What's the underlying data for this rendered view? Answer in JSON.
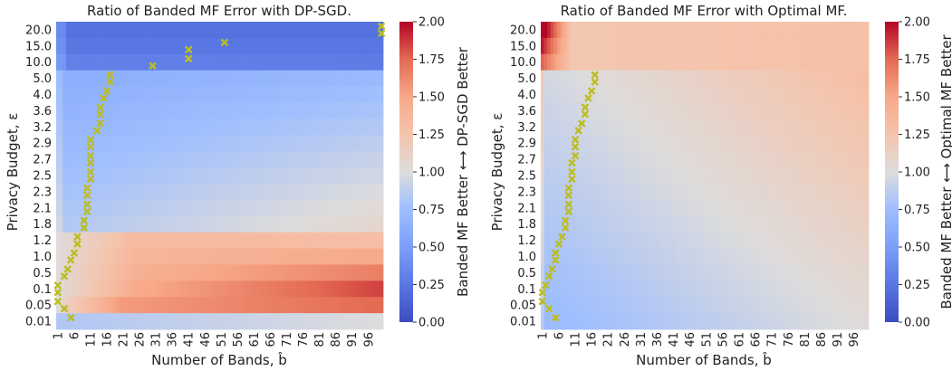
{
  "chart_data": [
    {
      "type": "heatmap",
      "title": "Ratio of Banded MF Error with DP-SGD.",
      "xlabel": "Number of Bands, b̂",
      "ylabel": "Privacy Budget, ε",
      "colorbar_label": "Banded MF Better ⟷ DP-SGD Better",
      "x_tick_labels": [
        "1",
        "6",
        "11",
        "16",
        "21",
        "26",
        "31",
        "36",
        "41",
        "46",
        "51",
        "56",
        "61",
        "66",
        "71",
        "76",
        "81",
        "86",
        "91",
        "96"
      ],
      "y_tick_labels": [
        "20.0",
        "15.0",
        "10.0",
        "5.0",
        "4.0",
        "3.6",
        "3.2",
        "2.9",
        "2.7",
        "2.5",
        "2.3",
        "2.1",
        "1.8",
        "1.2",
        "1.0",
        "0.5",
        "0.1",
        "0.05",
        "0.01"
      ],
      "colorbar_ticks": [
        "0.00",
        "0.25",
        "0.50",
        "0.75",
        "1.00",
        "1.25",
        "1.50",
        "1.75",
        "2.00"
      ],
      "vmin": 0.0,
      "vmax": 2.0,
      "colormap": "coolwarm",
      "marker_color": "#bcbd22",
      "optimal_markers": [
        {
          "eps": "20.0",
          "bands": 100
        },
        {
          "eps": "20.0",
          "bands": 100
        },
        {
          "eps": "15.0",
          "bands": 52
        },
        {
          "eps": "15.0",
          "bands": 41
        },
        {
          "eps": "10.0",
          "bands": 41
        },
        {
          "eps": "10.0",
          "bands": 30
        },
        {
          "eps": "5.0",
          "bands": 17
        },
        {
          "eps": "5.0",
          "bands": 17
        },
        {
          "eps": "4.0",
          "bands": 16
        },
        {
          "eps": "4.0",
          "bands": 15
        },
        {
          "eps": "3.6",
          "bands": 14
        },
        {
          "eps": "3.6",
          "bands": 14
        },
        {
          "eps": "3.2",
          "bands": 14
        },
        {
          "eps": "3.2",
          "bands": 13
        },
        {
          "eps": "2.9",
          "bands": 11
        },
        {
          "eps": "2.9",
          "bands": 11
        },
        {
          "eps": "2.7",
          "bands": 11
        },
        {
          "eps": "2.7",
          "bands": 11
        },
        {
          "eps": "2.5",
          "bands": 11
        },
        {
          "eps": "2.5",
          "bands": 11
        },
        {
          "eps": "2.3",
          "bands": 10
        },
        {
          "eps": "2.3",
          "bands": 10
        },
        {
          "eps": "2.1",
          "bands": 10
        },
        {
          "eps": "2.1",
          "bands": 10
        },
        {
          "eps": "1.8",
          "bands": 9
        },
        {
          "eps": "1.8",
          "bands": 9
        },
        {
          "eps": "1.2",
          "bands": 7
        },
        {
          "eps": "1.2",
          "bands": 7
        },
        {
          "eps": "1.0",
          "bands": 6
        },
        {
          "eps": "1.0",
          "bands": 5
        },
        {
          "eps": "0.5",
          "bands": 4
        },
        {
          "eps": "0.5",
          "bands": 3
        },
        {
          "eps": "0.1",
          "bands": 1
        },
        {
          "eps": "0.1",
          "bands": 1
        },
        {
          "eps": "0.05",
          "bands": 1
        },
        {
          "eps": "0.05",
          "bands": 3
        },
        {
          "eps": "0.01",
          "bands": 5
        }
      ],
      "pattern": "dpsgd"
    },
    {
      "type": "heatmap",
      "title": "Ratio of Banded MF Error with Optimal MF.",
      "xlabel": "Number of Bands, b̂",
      "ylabel": "Privacy Budget, ε",
      "colorbar_label": "Banded MF Better ⟷ Optimal MF Better",
      "x_tick_labels": [
        "1",
        "6",
        "11",
        "16",
        "21",
        "26",
        "31",
        "36",
        "41",
        "46",
        "51",
        "56",
        "61",
        "66",
        "71",
        "76",
        "81",
        "86",
        "91",
        "96"
      ],
      "y_tick_labels": [
        "20.0",
        "15.0",
        "10.0",
        "5.0",
        "4.0",
        "3.6",
        "3.2",
        "2.9",
        "2.7",
        "2.5",
        "2.3",
        "2.1",
        "1.8",
        "1.2",
        "1.0",
        "0.5",
        "0.1",
        "0.05",
        "0.01"
      ],
      "colorbar_ticks": [
        "0.00",
        "0.25",
        "0.50",
        "0.75",
        "1.00",
        "1.25",
        "1.50",
        "1.75",
        "2.00"
      ],
      "vmin": 0.0,
      "vmax": 2.0,
      "colormap": "coolwarm",
      "marker_color": "#bcbd22",
      "optimal_markers": [
        {
          "eps": "5.0",
          "bands": 17
        },
        {
          "eps": "5.0",
          "bands": 17
        },
        {
          "eps": "4.0",
          "bands": 16
        },
        {
          "eps": "4.0",
          "bands": 15
        },
        {
          "eps": "3.6",
          "bands": 14
        },
        {
          "eps": "3.6",
          "bands": 14
        },
        {
          "eps": "3.2",
          "bands": 13
        },
        {
          "eps": "3.2",
          "bands": 12
        },
        {
          "eps": "2.9",
          "bands": 11
        },
        {
          "eps": "2.9",
          "bands": 11
        },
        {
          "eps": "2.7",
          "bands": 11
        },
        {
          "eps": "2.7",
          "bands": 10
        },
        {
          "eps": "2.5",
          "bands": 10
        },
        {
          "eps": "2.5",
          "bands": 10
        },
        {
          "eps": "2.3",
          "bands": 9
        },
        {
          "eps": "2.3",
          "bands": 9
        },
        {
          "eps": "2.1",
          "bands": 9
        },
        {
          "eps": "2.1",
          "bands": 9
        },
        {
          "eps": "1.8",
          "bands": 8
        },
        {
          "eps": "1.8",
          "bands": 8
        },
        {
          "eps": "1.2",
          "bands": 7
        },
        {
          "eps": "1.2",
          "bands": 6
        },
        {
          "eps": "1.0",
          "bands": 5
        },
        {
          "eps": "1.0",
          "bands": 5
        },
        {
          "eps": "0.5",
          "bands": 4
        },
        {
          "eps": "0.5",
          "bands": 3
        },
        {
          "eps": "0.1",
          "bands": 2
        },
        {
          "eps": "0.1",
          "bands": 1
        },
        {
          "eps": "0.05",
          "bands": 1
        },
        {
          "eps": "0.05",
          "bands": 3
        },
        {
          "eps": "0.01",
          "bands": 5
        }
      ],
      "pattern": "optimal"
    }
  ]
}
